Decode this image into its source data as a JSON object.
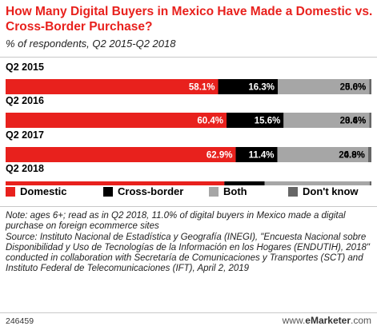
{
  "title": "How Many Digital Buyers in Mexico Have Made a Domestic vs. Cross-Border Purchase?",
  "subtitle": "% of respondents, Q2 2015-Q2 2018",
  "chart_data": {
    "type": "bar",
    "stacked": true,
    "orientation": "horizontal",
    "categories": [
      "Q2 2015",
      "Q2 2016",
      "Q2 2017",
      "Q2 2018"
    ],
    "series": [
      {
        "name": "Domestic",
        "color": "#e8211d",
        "values": [
          58.1,
          60.4,
          62.9,
          59.8
        ],
        "labels": [
          "58.1%",
          "60.4%",
          "62.9%",
          "59.8%"
        ]
      },
      {
        "name": "Cross-border",
        "color": "#000000",
        "values": [
          16.3,
          15.6,
          11.4,
          11.0
        ],
        "labels": [
          "16.3%",
          "15.6%",
          "11.4%",
          "11.0%"
        ]
      },
      {
        "name": "Both",
        "color": "#a6a6a6",
        "values": [
          25.0,
          23.4,
          24.8,
          28.7
        ],
        "labels": [
          "25.0%",
          "23.4%",
          "24.8%",
          "28.7%"
        ]
      },
      {
        "name": "Don't know",
        "color": "#666666",
        "values": [
          0.6,
          0.6,
          0.9,
          0.5
        ],
        "labels": [
          "0.6%",
          "0.6%",
          "0.9%",
          "0.5%"
        ]
      }
    ],
    "legend_position": "bottom"
  },
  "note": "Note: ages 6+; read as in Q2 2018, 11.0% of digital buyers in Mexico made a digital purchase on foreign ecommerce sites",
  "source": "Source: Instituto Nacional de Estadística y Geografía (INEGI), \"Encuesta Nacional sobre Disponibilidad y Uso de Tecnologías de la Información en los Hogares (ENDUTIH), 2018\" conducted in collaboration with Secretaría de Comunicaciones y Transportes (SCT) and Instituto Federal de Telecomunicaciones (IFT), April 2, 2019",
  "footer": {
    "chart_id": "246459",
    "brand_prefix": "www.",
    "brand_name": "eMarketer",
    "brand_suffix": ".com"
  }
}
